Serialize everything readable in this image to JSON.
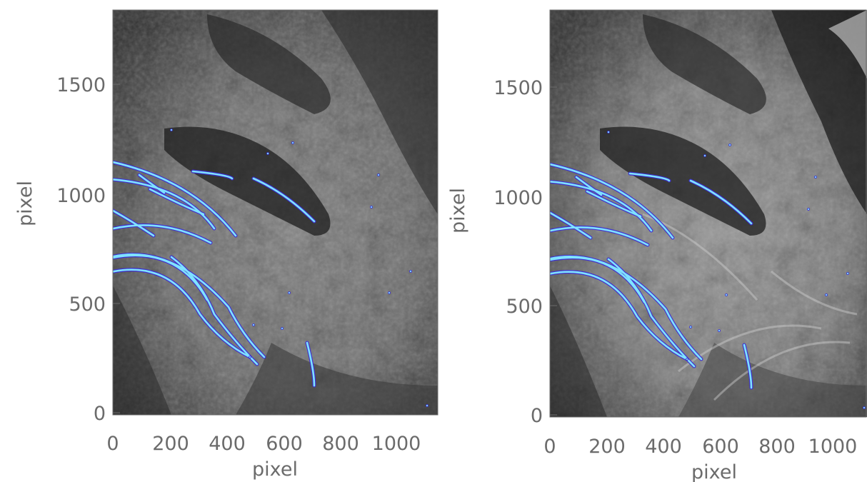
{
  "panels": [
    {
      "name": "left",
      "xlabel": "pixel",
      "ylabel": "pixel",
      "xticks": [
        "0",
        "200",
        "400",
        "600",
        "800",
        "1000"
      ],
      "yticks": [
        "0",
        "500",
        "1000",
        "1500"
      ],
      "xrange": [
        0,
        1150
      ],
      "yrange": [
        0,
        1820
      ]
    },
    {
      "name": "right",
      "xlabel": "pixel",
      "ylabel": "pixel",
      "xticks": [
        "0",
        "200",
        "400",
        "600",
        "800",
        "1000"
      ],
      "yticks": [
        "0",
        "500",
        "1000",
        "1500"
      ],
      "xrange": [
        0,
        1150
      ],
      "yrange": [
        0,
        1820
      ]
    }
  ],
  "colors": {
    "overlay_fill": "#7fe3ff",
    "overlay_edge": "#3b2bd6",
    "axis": "#6b6b6b"
  }
}
